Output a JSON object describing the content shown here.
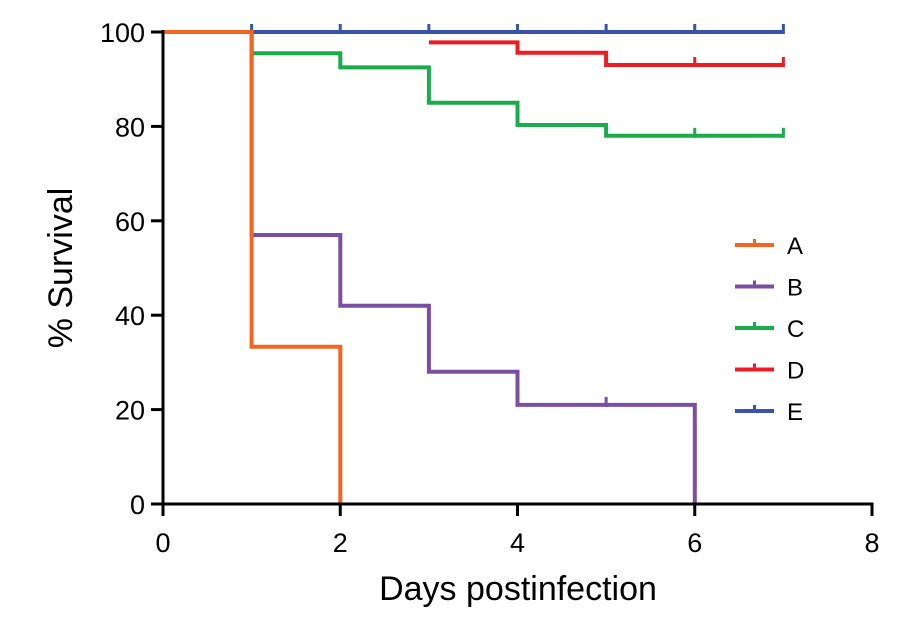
{
  "chart_data": {
    "type": "line",
    "step": true,
    "xlabel": "Days postinfection",
    "ylabel": "% Survival",
    "xlim": [
      0,
      8
    ],
    "ylim": [
      0,
      100
    ],
    "xticks": [
      0,
      2,
      4,
      6,
      8
    ],
    "yticks": [
      0,
      20,
      40,
      60,
      80,
      100
    ],
    "grid": false,
    "legend_position": "right",
    "series": [
      {
        "name": "A",
        "color": "#f26522",
        "points": [
          [
            0,
            100
          ],
          [
            1,
            100
          ],
          [
            1,
            33.3
          ],
          [
            2,
            33.3
          ],
          [
            2,
            0
          ]
        ],
        "censor": []
      },
      {
        "name": "B",
        "color": "#7b4ea3",
        "points": [
          [
            0,
            100
          ],
          [
            1,
            100
          ],
          [
            1,
            57
          ],
          [
            2,
            57
          ],
          [
            2,
            42
          ],
          [
            3,
            42
          ],
          [
            3,
            28
          ],
          [
            4,
            28
          ],
          [
            4,
            21
          ],
          [
            6,
            21
          ],
          [
            6,
            0
          ]
        ],
        "censor": [
          [
            5,
            21
          ]
        ]
      },
      {
        "name": "C",
        "color": "#1aab4b",
        "points": [
          [
            0,
            100
          ],
          [
            1,
            100
          ],
          [
            1,
            95.5
          ],
          [
            2,
            95.5
          ],
          [
            2,
            92.5
          ],
          [
            3,
            92.5
          ],
          [
            3,
            85
          ],
          [
            4,
            85
          ],
          [
            4,
            80.3
          ],
          [
            5,
            80.3
          ],
          [
            5,
            78
          ],
          [
            7,
            78
          ]
        ],
        "censor": [
          [
            6,
            78
          ],
          [
            7,
            78
          ]
        ]
      },
      {
        "name": "D",
        "color": "#ed1c24",
        "points": [
          [
            3,
            97.8
          ],
          [
            4,
            97.8
          ],
          [
            4,
            95.6
          ],
          [
            5,
            95.6
          ],
          [
            5,
            93
          ],
          [
            7,
            93
          ]
        ],
        "censor": [
          [
            6,
            93
          ],
          [
            7,
            93
          ]
        ]
      },
      {
        "name": "E",
        "color": "#3a53a4",
        "points": [
          [
            0,
            100
          ],
          [
            7,
            100
          ]
        ],
        "censor": [
          [
            1,
            100
          ],
          [
            2,
            100
          ],
          [
            3,
            100
          ],
          [
            4,
            100
          ],
          [
            5,
            100
          ],
          [
            6,
            100
          ],
          [
            7,
            100
          ]
        ]
      }
    ]
  }
}
